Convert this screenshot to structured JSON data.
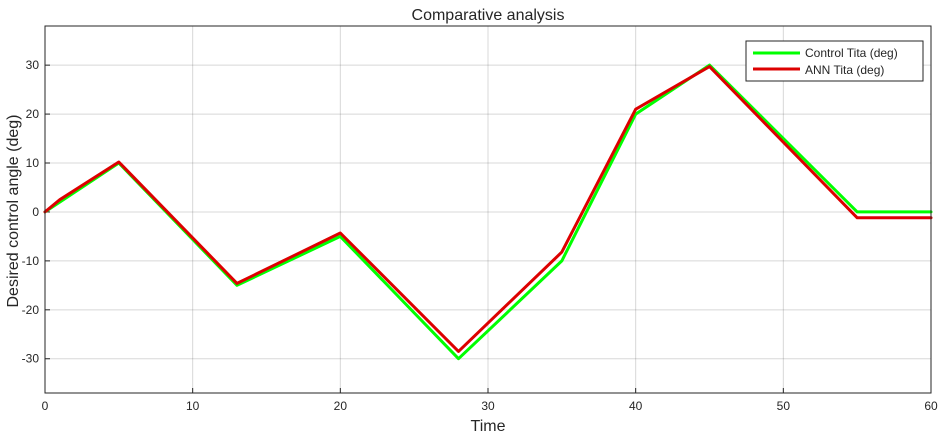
{
  "chart_data": {
    "type": "line",
    "title": "Comparative analysis",
    "xlabel": "Time",
    "ylabel": "Desired control angle (deg)",
    "xlim": [
      0,
      60
    ],
    "ylim": [
      -37,
      38
    ],
    "xticks": [
      0,
      10,
      20,
      30,
      40,
      50,
      60
    ],
    "yticks": [
      -30,
      -20,
      -10,
      0,
      10,
      20,
      30
    ],
    "grid": true,
    "legend_position": "top-right",
    "series": [
      {
        "name": "Control Tita (deg)",
        "color": "#00ff00",
        "x": [
          0,
          5,
          13,
          20,
          28,
          35,
          40,
          45,
          55,
          60
        ],
        "y": [
          0,
          10,
          -15,
          -5,
          -30,
          -10,
          20,
          30,
          0,
          0
        ]
      },
      {
        "name": "ANN Tita (deg)",
        "color": "#dd0000",
        "x": [
          0,
          1,
          5,
          13,
          20,
          28,
          35,
          40,
          45,
          55,
          60
        ],
        "y": [
          0,
          2.5,
          10.2,
          -14.6,
          -4.3,
          -28.5,
          -8.2,
          21,
          29.7,
          -1.2,
          -1.2
        ]
      }
    ]
  }
}
